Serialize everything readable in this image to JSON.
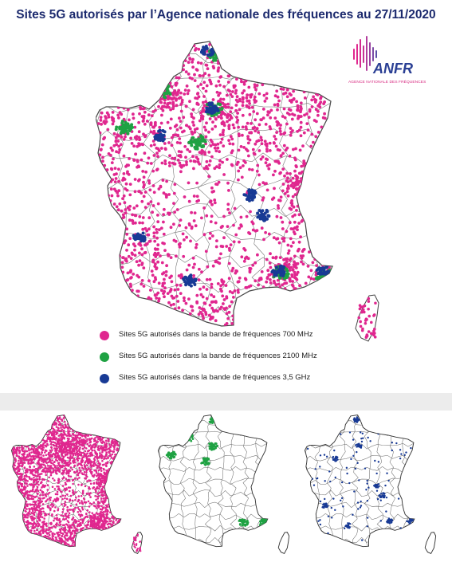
{
  "title": "Sites 5G autorisés par l’Agence nationale des fréquences au 27/11/2020",
  "logo": {
    "name": "ANFR",
    "subtitle": "AGENCE NATIONALE DES FRÉQUENCES"
  },
  "legend": [
    {
      "label": "Sites 5G autorisés dans la bande de fréquences 700 MHz",
      "color": "#e0278f"
    },
    {
      "label": "Sites 5G autorisés dans la bande de fréquences 2100 MHz",
      "color": "#1fa243"
    },
    {
      "label": "Sites 5G autorisés dans la bande de fréquences 3,5 GHz",
      "color": "#183a95"
    }
  ],
  "colors": {
    "band_700": "#e0278f",
    "band_2100": "#1fa243",
    "band_3500": "#183a95",
    "title": "#1c2a6e",
    "divider": "#ececec"
  }
}
